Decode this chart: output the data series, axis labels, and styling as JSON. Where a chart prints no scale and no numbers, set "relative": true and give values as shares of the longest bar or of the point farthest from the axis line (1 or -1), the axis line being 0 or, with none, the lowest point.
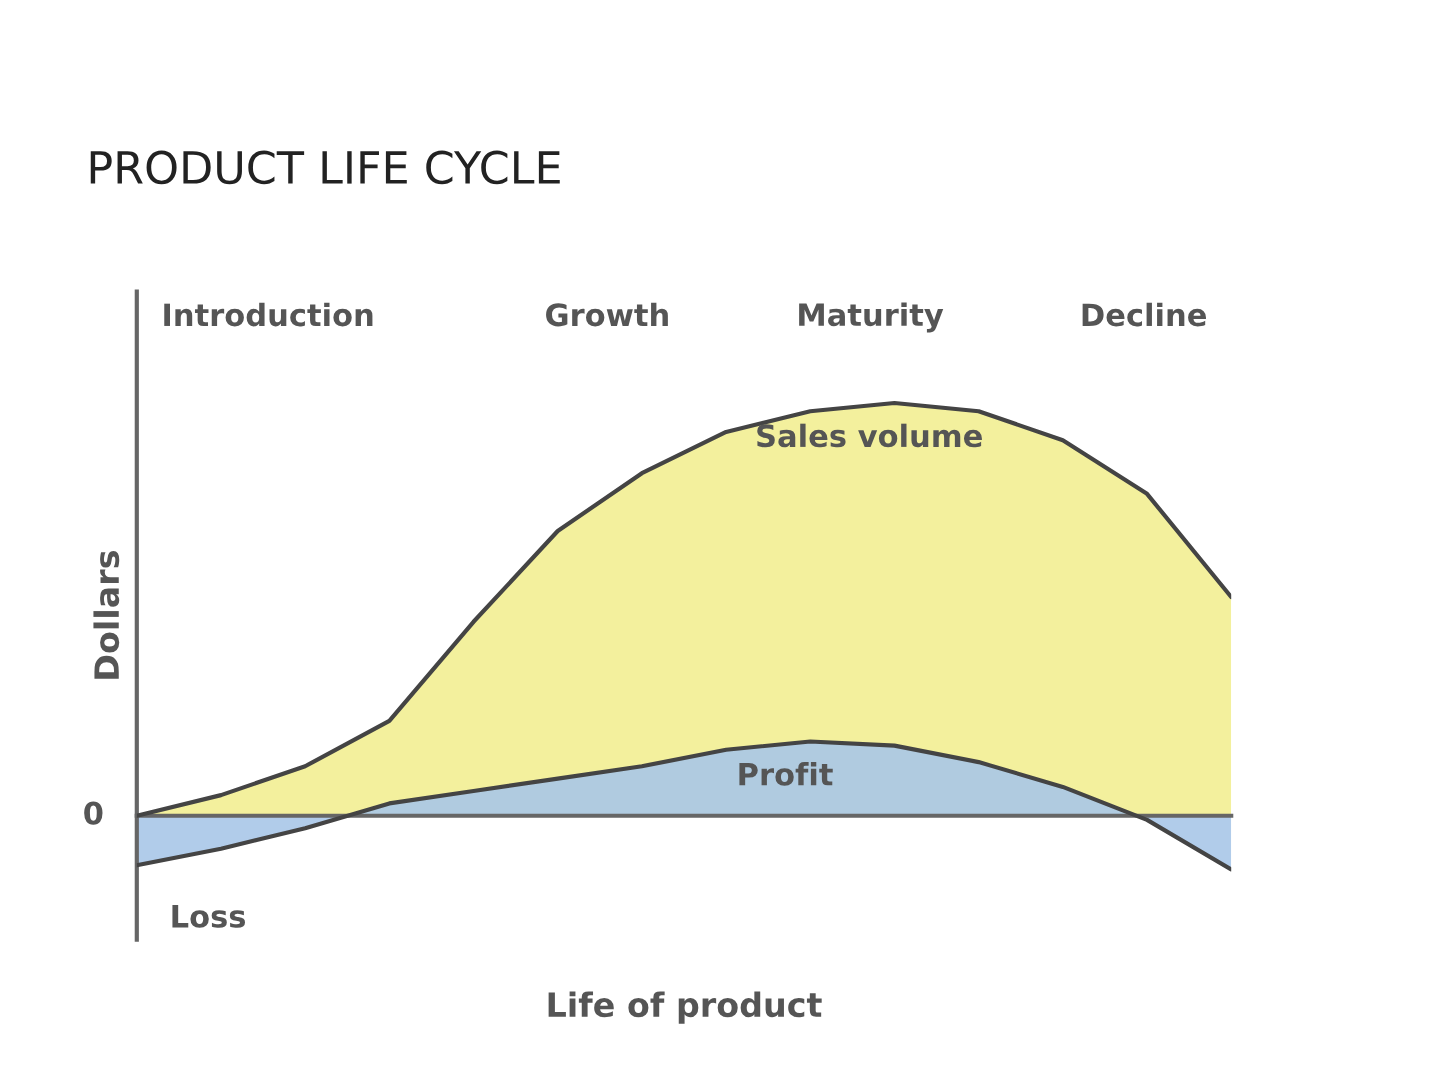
{
  "chart_data": {
    "type": "area",
    "title": "PRODUCT LIFE CYCLE",
    "xlabel": "Life of product",
    "ylabel": "Dollars",
    "relative": true,
    "categories": [
      null,
      null,
      null,
      null,
      null,
      null,
      null,
      null,
      null,
      null,
      null,
      null,
      null,
      null
    ],
    "series": [
      {
        "name": "Sales volume",
        "color": "#f2ee92",
        "values": [
          0,
          0.05,
          0.12,
          0.23,
          0.47,
          0.69,
          0.83,
          0.93,
          0.98,
          1.0,
          0.98,
          0.91,
          0.78,
          0.53
        ]
      },
      {
        "name": "Profit",
        "color": "#a9c6e8",
        "values": [
          -0.12,
          -0.08,
          -0.03,
          0.03,
          0.06,
          0.09,
          0.12,
          0.16,
          0.18,
          0.17,
          0.13,
          0.07,
          -0.01,
          -0.13
        ]
      }
    ],
    "annotations": [
      "Introduction",
      "Growth",
      "Maturity",
      "Decline",
      "0",
      "Loss"
    ],
    "grid": false,
    "legend": false
  }
}
